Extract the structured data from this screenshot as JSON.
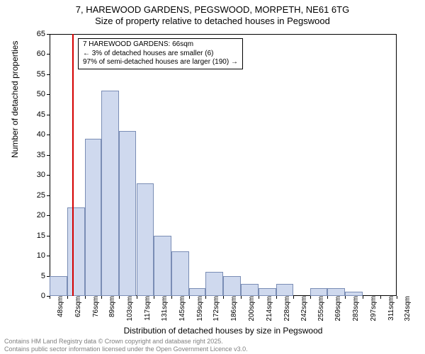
{
  "title": {
    "line1": "7, HAREWOOD GARDENS, PEGSWOOD, MORPETH, NE61 6TG",
    "line2": "Size of property relative to detached houses in Pegswood"
  },
  "ylabel": "Number of detached properties",
  "xlabel": "Distribution of detached houses by size in Pegswood",
  "chart": {
    "type": "histogram",
    "bar_fill": "#cfd9ee",
    "bar_border": "#7a8db5",
    "background_color": "#ffffff",
    "y": {
      "min": 0,
      "max": 65,
      "step": 5
    },
    "x_ticks": [
      48,
      62,
      76,
      89,
      103,
      117,
      131,
      145,
      159,
      172,
      186,
      200,
      214,
      228,
      242,
      255,
      269,
      283,
      297,
      311,
      324
    ],
    "x_tick_unit": "sqm",
    "bars": [
      5,
      22,
      39,
      51,
      41,
      28,
      15,
      11,
      2,
      6,
      5,
      3,
      2,
      3,
      0,
      2,
      2,
      1,
      0,
      0
    ],
    "reference": {
      "x": 66,
      "color": "#d40000",
      "label_lines": [
        "7 HAREWOOD GARDENS: 66sqm",
        "← 3% of detached houses are smaller (6)",
        "97% of semi-detached houses are larger (190) →"
      ]
    }
  },
  "footer": {
    "line1": "Contains HM Land Registry data © Crown copyright and database right 2025.",
    "line2": "Contains public sector information licensed under the Open Government Licence v3.0."
  }
}
